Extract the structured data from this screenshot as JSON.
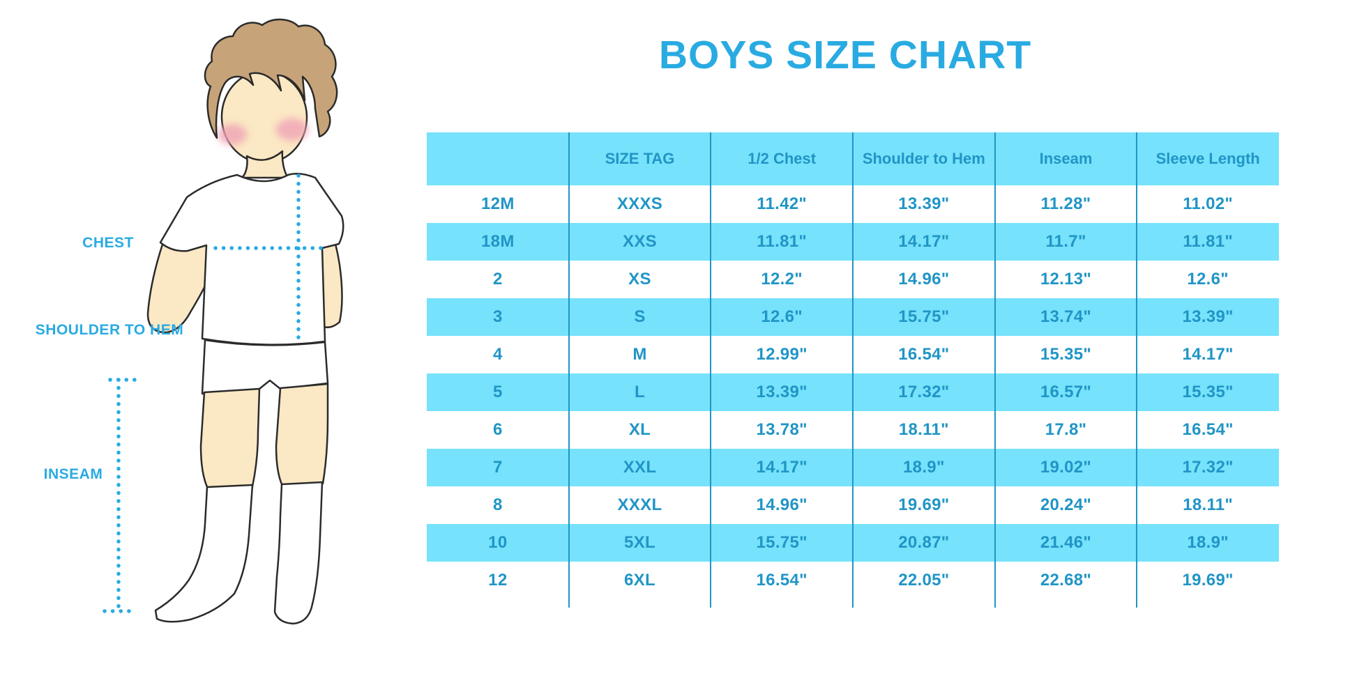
{
  "title": "BOYS SIZE CHART",
  "illustration": {
    "labels": {
      "chest": "CHEST",
      "shoulder_to_hem": "SHOULDER TO HEM",
      "inseam": "INSEAM"
    }
  },
  "table": {
    "headers": [
      "",
      "SIZE TAG",
      "1/2 Chest",
      "Shoulder to Hem",
      "Inseam",
      "Sleeve Length"
    ],
    "rows": [
      [
        "12M",
        "XXXS",
        "11.42\"",
        "13.39\"",
        "11.28\"",
        "11.02\""
      ],
      [
        "18M",
        "XXS",
        "11.81\"",
        "14.17\"",
        "11.7\"",
        "11.81\""
      ],
      [
        "2",
        "XS",
        "12.2\"",
        "14.96\"",
        "12.13\"",
        "12.6\""
      ],
      [
        "3",
        "S",
        "12.6\"",
        "15.75\"",
        "13.74\"",
        "13.39\""
      ],
      [
        "4",
        "M",
        "12.99\"",
        "16.54\"",
        "15.35\"",
        "14.17\""
      ],
      [
        "5",
        "L",
        "13.39\"",
        "17.32\"",
        "16.57\"",
        "15.35\""
      ],
      [
        "6",
        "XL",
        "13.78\"",
        "18.11\"",
        "17.8\"",
        "16.54\""
      ],
      [
        "7",
        "XXL",
        "14.17\"",
        "18.9\"",
        "19.02\"",
        "17.32\""
      ],
      [
        "8",
        "XXXL",
        "14.96\"",
        "19.69\"",
        "20.24\"",
        "18.11\""
      ],
      [
        "10",
        "5XL",
        "15.75\"",
        "20.87\"",
        "21.46\"",
        "18.9\""
      ],
      [
        "12",
        "6XL",
        "16.54\"",
        "22.05\"",
        "22.68\"",
        "19.69\""
      ]
    ]
  },
  "colors": {
    "accent_blue": "#29ABE2",
    "table_text_blue": "#2095C6",
    "row_band_cyan": "#76E2FB",
    "skin": "#FBE8C4",
    "hair": "#C7A379",
    "cheek": "#F0A3B6",
    "outline": "#2B2B2B"
  }
}
